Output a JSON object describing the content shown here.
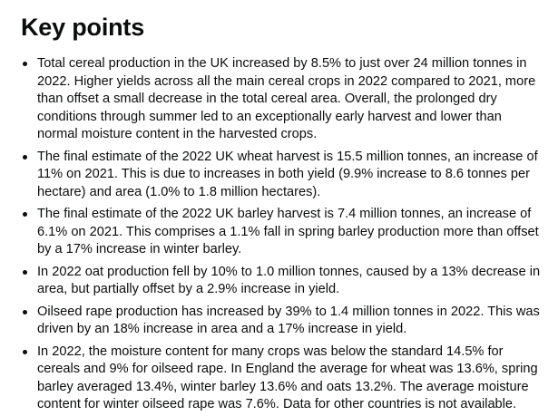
{
  "heading": "Key points",
  "points": [
    "Total cereal production in the UK increased by 8.5% to just over 24 million tonnes in 2022. Higher yields across all the main cereal crops in 2022 compared to 2021, more than offset a small decrease in the total cereal area. Overall, the prolonged dry conditions through summer led to an exceptionally early harvest and lower than normal moisture content in the harvested crops.",
    "The final estimate of the 2022 UK wheat harvest is 15.5 million tonnes, an increase of 11% on 2021. This is due to increases in both yield (9.9% increase to 8.6 tonnes per hectare) and area (1.0% to 1.8 million hectares).",
    "The final estimate of the 2022 UK barley harvest is 7.4 million tonnes, an increase of 6.1% on 2021. This comprises a 1.1% fall in spring barley production more than offset by a 17% increase in winter barley.",
    "In 2022 oat production fell by 10% to 1.0 million tonnes, caused by a 13% decrease in area, but partially offset by a 2.9% increase in yield.",
    "Oilseed rape production has increased by 39% to 1.4 million tonnes in 2022. This was driven by an 18% increase in area and a 17% increase in yield.",
    "In 2022, the moisture content for many crops was below the standard 14.5% for cereals and 9% for oilseed rape. In England the average for wheat was 13.6%, spring barley averaged 13.4%, winter barley 13.6% and oats 13.2%. The average moisture content for winter oilseed rape was 7.6%. Data for other countries is not available."
  ]
}
